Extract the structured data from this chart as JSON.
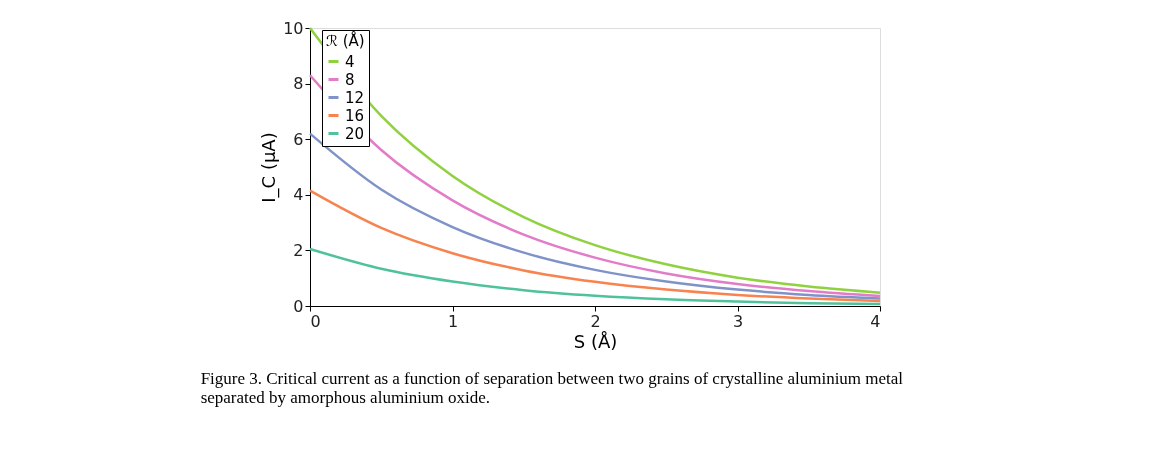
{
  "chart_data": {
    "type": "line",
    "xlabel": "S (Å)",
    "ylabel": "I_C (μA)",
    "legend_title": "ℛ (Å)",
    "x": [
      0,
      0.5,
      1,
      1.5,
      2,
      2.5,
      3,
      3.5,
      4
    ],
    "series": [
      {
        "name": "4",
        "color": "#8fd13f",
        "values": [
          10,
          6.84,
          4.68,
          3.2,
          2.19,
          1.5,
          1.02,
          0.7,
          0.48
        ]
      },
      {
        "name": "8",
        "color": "#e27cc8",
        "values": [
          8.3,
          5.61,
          3.8,
          2.57,
          1.74,
          1.17,
          0.79,
          0.54,
          0.36
        ]
      },
      {
        "name": "12",
        "color": "#7f93c9",
        "values": [
          6.2,
          4.19,
          2.84,
          1.92,
          1.3,
          0.88,
          0.59,
          0.4,
          0.27
        ]
      },
      {
        "name": "16",
        "color": "#f7834f",
        "values": [
          4.15,
          2.81,
          1.9,
          1.28,
          0.87,
          0.59,
          0.4,
          0.27,
          0.18
        ]
      },
      {
        "name": "20",
        "color": "#4fc29a",
        "values": [
          2.05,
          1.34,
          0.88,
          0.57,
          0.37,
          0.24,
          0.16,
          0.1,
          0.07
        ]
      }
    ],
    "xlim": [
      0,
      4
    ],
    "xticks": [
      0,
      1,
      2,
      3,
      4
    ],
    "ylim": [
      0,
      10
    ],
    "yticks": [
      0,
      2,
      4,
      6,
      8,
      10
    ],
    "grid": false,
    "legend": "top left",
    "marker": "none",
    "line_style": "solid",
    "annotations": [
      "Figure 3. Critical current as a function of separation between two grains of crystalline aluminium metal separated by amorphous aluminium oxide."
    ]
  }
}
